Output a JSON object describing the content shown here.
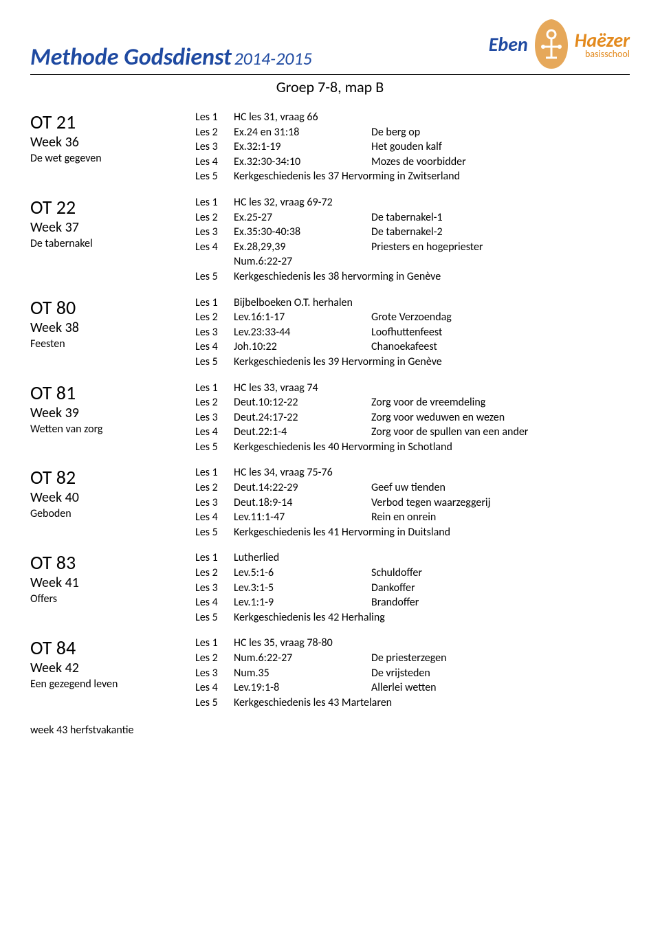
{
  "header": {
    "title": "Methode Godsdienst",
    "year": "2014-2015",
    "subtitle": "Groep 7-8, map B",
    "logo": {
      "line1a": "Eben",
      "line1b": "Haëzer",
      "sub": "basisschool"
    }
  },
  "footer_note": "week 43 herfstvakantie",
  "units": [
    {
      "code": "OT 21",
      "week": "Week 36",
      "theme": "De wet gegeven",
      "lessons": [
        {
          "n": "Les 1",
          "full": "HC les 31, vraag 66"
        },
        {
          "n": "Les 2",
          "ref": "Ex.24 en 31:18",
          "desc": "De berg op"
        },
        {
          "n": "Les 3",
          "ref": "Ex.32:1-19",
          "desc": "Het gouden kalf"
        },
        {
          "n": "Les 4",
          "ref": "Ex.32:30-34:10",
          "desc": "Mozes de voorbidder"
        },
        {
          "n": "Les 5",
          "full": "Kerkgeschiedenis les 37 Hervorming in Zwitserland"
        }
      ]
    },
    {
      "code": "OT 22",
      "week": "Week 37",
      "theme": "De tabernakel",
      "lessons": [
        {
          "n": "Les 1",
          "full": "HC les 32, vraag 69-72"
        },
        {
          "n": "Les 2",
          "ref": "Ex.25-27",
          "desc": "De tabernakel-1"
        },
        {
          "n": "",
          "full": ""
        },
        {
          "n": "Les 3",
          "ref": "Ex.35:30-40:38",
          "desc": "De tabernakel-2"
        },
        {
          "n": "Les 4",
          "ref": "Ex.28,29,39",
          "desc": "Priesters en hogepriester"
        },
        {
          "n": "",
          "ref": "Num.6:22-27",
          "desc": ""
        },
        {
          "n": "Les 5",
          "full": "Kerkgeschiedenis les 38 hervorming in Genève"
        }
      ]
    },
    {
      "code": "OT 80",
      "week": "Week 38",
      "theme": "Feesten",
      "lessons": [
        {
          "n": "Les 1",
          "full": "Bijbelboeken O.T. herhalen"
        },
        {
          "n": "Les 2",
          "ref": "Lev.16:1-17",
          "desc": "Grote Verzoendag"
        },
        {
          "n": "Les 3",
          "ref": "Lev.23:33-44",
          "desc": "Loofhuttenfeest"
        },
        {
          "n": "Les 4",
          "ref": "Joh.10:22",
          "desc": "Chanoekafeest"
        },
        {
          "n": "Les 5",
          "full": "Kerkgeschiedenis les 39 Hervorming in Genève"
        }
      ]
    },
    {
      "code": "OT 81",
      "week": "Week 39",
      "theme": "Wetten van zorg",
      "lessons": [
        {
          "n": "Les 1",
          "full": "HC les 33, vraag 74"
        },
        {
          "n": "Les 2",
          "ref": "Deut.10:12-22",
          "desc": "Zorg voor de vreemdeling"
        },
        {
          "n": "Les 3",
          "ref": "Deut.24:17-22",
          "desc": "Zorg voor weduwen en wezen"
        },
        {
          "n": "Les 4",
          "ref": "Deut.22:1-4",
          "desc": "Zorg voor de spullen van een ander"
        },
        {
          "n": "Les 5",
          "full": "Kerkgeschiedenis les 40 Hervorming in Schotland"
        }
      ]
    },
    {
      "code": "OT 82",
      "week": "Week 40",
      "theme": "Geboden",
      "lessons": [
        {
          "n": "Les 1",
          "full": "HC les 34, vraag 75-76"
        },
        {
          "n": "Les 2",
          "ref": "Deut.14:22-29",
          "desc": "Geef uw tienden"
        },
        {
          "n": "Les 3",
          "ref": "Deut.18:9-14",
          "desc": "Verbod tegen waarzeggerij"
        },
        {
          "n": "Les 4",
          "ref": "Lev.11:1-47",
          "desc": "Rein en onrein"
        },
        {
          "n": "Les 5",
          "full": "Kerkgeschiedenis les 41 Hervorming in Duitsland"
        }
      ]
    },
    {
      "code": "OT 83",
      "week": "Week 41",
      "theme": "Offers",
      "lessons": [
        {
          "n": "Les 1",
          "full": "Lutherlied"
        },
        {
          "n": "Les 2",
          "ref": "Lev.5:1-6",
          "desc": "Schuldoffer"
        },
        {
          "n": "Les 3",
          "ref": "Lev.3:1-5",
          "desc": "Dankoffer"
        },
        {
          "n": "Les 4",
          "ref": "Lev.1:1-9",
          "desc": "Brandoffer"
        },
        {
          "n": "Les 5",
          "full": "Kerkgeschiedenis les 42 Herhaling"
        }
      ]
    },
    {
      "code": "OT 84",
      "week": "Week 42",
      "theme": "Een gezegend leven",
      "lessons": [
        {
          "n": "Les 1",
          "full": "HC les 35, vraag 78-80"
        },
        {
          "n": "Les 2",
          "ref": "Num.6:22-27",
          "desc": "De priesterzegen"
        },
        {
          "n": "Les 3",
          "ref": "Num.35",
          "desc": "De vrijsteden"
        },
        {
          "n": "Les 4",
          "ref": "Lev.19:1-8",
          "desc": "Allerlei wetten"
        },
        {
          "n": "Les 5",
          "full": "Kerkgeschiedenis les 43 Martelaren"
        }
      ]
    }
  ]
}
